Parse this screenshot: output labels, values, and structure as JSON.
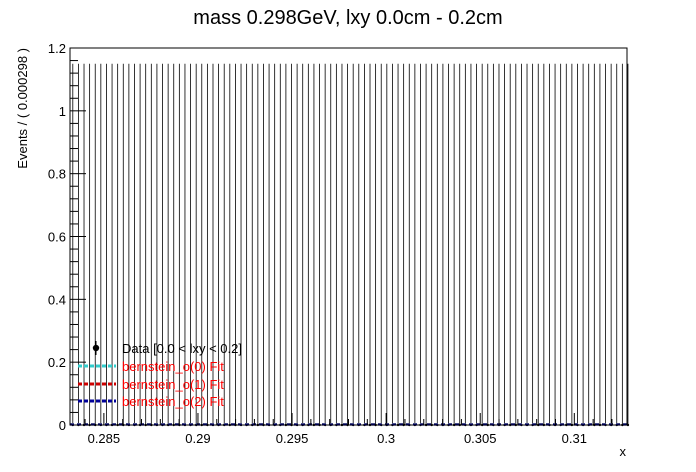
{
  "chart_data": {
    "type": "histogram",
    "title": "mass 0.298GeV, lxy 0.0cm - 0.2cm",
    "xlabel": "x",
    "ylabel": "Events / ( 0.000298 )",
    "xlim": [
      0.2832,
      0.3128
    ],
    "ylim": [
      0,
      1.2
    ],
    "bin_width": 0.000298,
    "n_bins": 100,
    "error_bar_upper": 1.15,
    "xticks": [
      {
        "value": 0.285,
        "label": "0.285"
      },
      {
        "value": 0.29,
        "label": "0.29"
      },
      {
        "value": 0.295,
        "label": "0.295"
      },
      {
        "value": 0.3,
        "label": "0.3"
      },
      {
        "value": 0.305,
        "label": "0.305"
      },
      {
        "value": 0.31,
        "label": "0.31"
      }
    ],
    "yticks": [
      {
        "value": 0,
        "label": "0"
      },
      {
        "value": 0.2,
        "label": "0.2"
      },
      {
        "value": 0.4,
        "label": "0.4"
      },
      {
        "value": 0.6,
        "label": "0.6"
      },
      {
        "value": 0.8,
        "label": "0.8"
      },
      {
        "value": 1.0,
        "label": "1"
      },
      {
        "value": 1.2,
        "label": "1.2"
      }
    ],
    "series": [
      {
        "name": "Data [0.0 < lxy < 0.2]",
        "kind": "points",
        "color": "#000000",
        "values_all_bins": 0
      },
      {
        "name": "bernstein_o(0) Fit",
        "kind": "line",
        "color": "#33cccc",
        "style": "dashed",
        "y": 0.003
      },
      {
        "name": "bernstein_o(1) Fit",
        "kind": "line",
        "color": "#cc0000",
        "style": "dashed",
        "y": 0.002
      },
      {
        "name": "bernstein_o(2) Fit",
        "kind": "line",
        "color": "#000099",
        "style": "dashed",
        "y": 0.001
      }
    ],
    "legend_position": "bottom-left",
    "legend_text_colors": [
      "#000000",
      "#ff0000",
      "#ff0000",
      "#ff0000"
    ]
  }
}
